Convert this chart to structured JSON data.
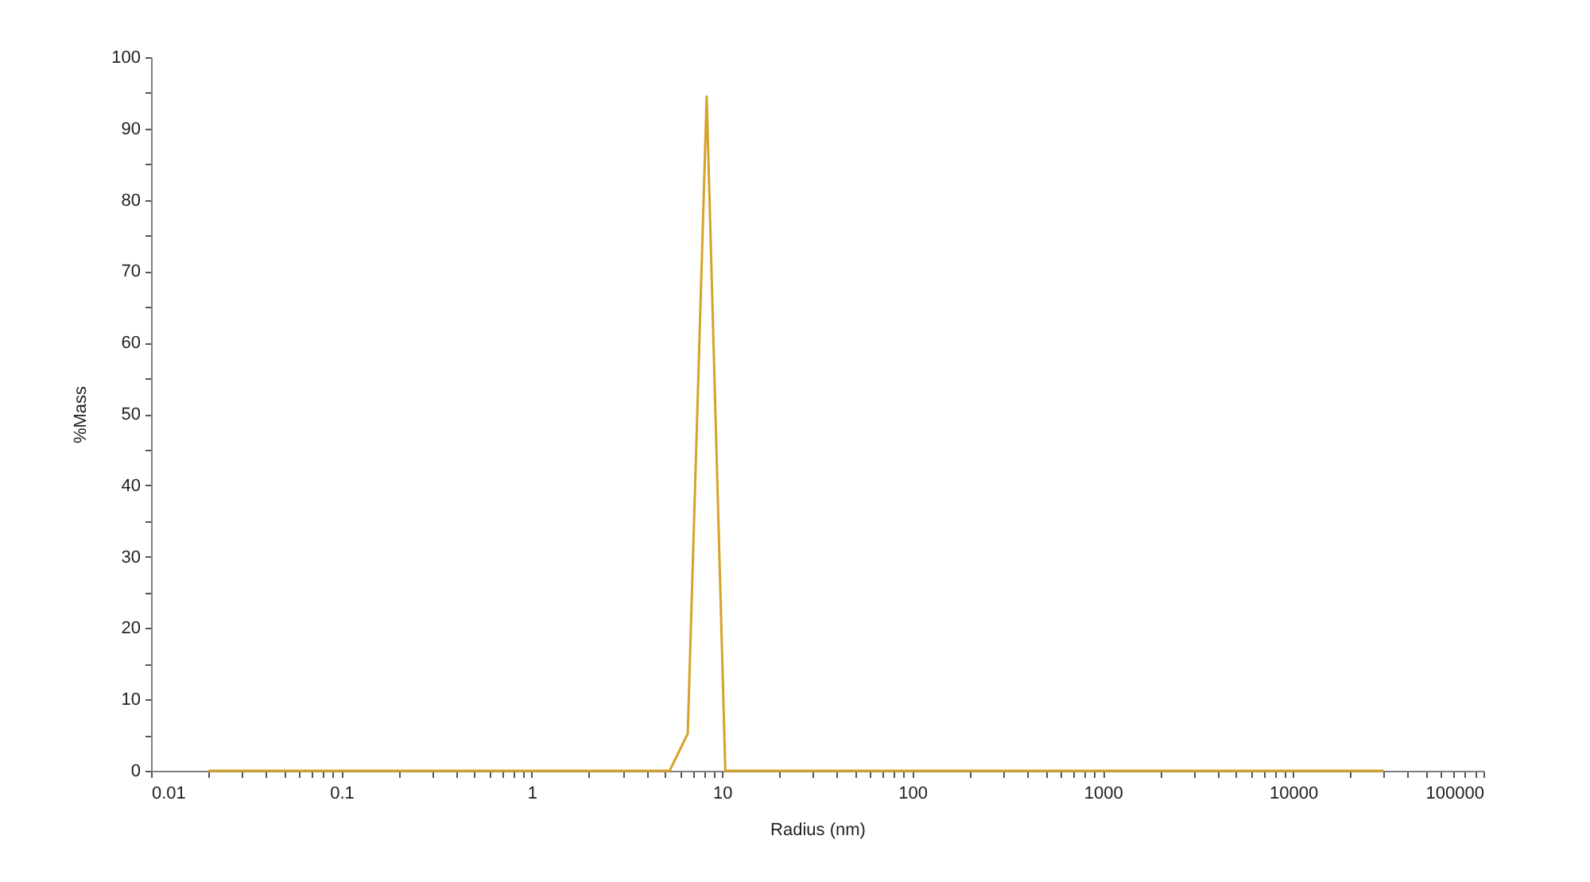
{
  "chart_data": {
    "type": "line",
    "xlabel": "Radius (nm)",
    "ylabel": "%Mass",
    "log": "x",
    "line_style": "solid",
    "x": [
      0.02,
      5.3,
      6.6,
      8.3,
      10.4,
      30000
    ],
    "series": [
      {
        "color": "#d6a22a",
        "values": [
          0,
          0,
          5.2,
          94.5,
          0,
          0
        ]
      }
    ],
    "xlim": [
      0.01,
      100000
    ],
    "ylim": [
      0,
      100
    ],
    "xticks": [
      0.01,
      {
        "value": 0.02,
        "label": null
      },
      {
        "value": 0.03,
        "label": null
      },
      {
        "value": 0.04,
        "label": null
      },
      {
        "value": 0.05,
        "label": null
      },
      {
        "value": 0.06,
        "label": null
      },
      {
        "value": 0.07,
        "label": null
      },
      {
        "value": 0.08,
        "label": null
      },
      {
        "value": 0.09,
        "label": null
      },
      0.1,
      {
        "value": 0.2,
        "label": null
      },
      {
        "value": 0.3,
        "label": null
      },
      {
        "value": 0.4,
        "label": null
      },
      {
        "value": 0.5,
        "label": null
      },
      {
        "value": 0.6,
        "label": null
      },
      {
        "value": 0.7,
        "label": null
      },
      {
        "value": 0.8,
        "label": null
      },
      {
        "value": 0.9,
        "label": null
      },
      1,
      {
        "value": 2,
        "label": null
      },
      {
        "value": 3,
        "label": null
      },
      {
        "value": 4,
        "label": null
      },
      {
        "value": 5,
        "label": null
      },
      {
        "value": 6,
        "label": null
      },
      {
        "value": 7,
        "label": null
      },
      {
        "value": 8,
        "label": null
      },
      {
        "value": 9,
        "label": null
      },
      10,
      {
        "value": 20,
        "label": null
      },
      {
        "value": 30,
        "label": null
      },
      {
        "value": 40,
        "label": null
      },
      {
        "value": 50,
        "label": null
      },
      {
        "value": 60,
        "label": null
      },
      {
        "value": 70,
        "label": null
      },
      {
        "value": 80,
        "label": null
      },
      {
        "value": 90,
        "label": null
      },
      100,
      {
        "value": 200,
        "label": null
      },
      {
        "value": 300,
        "label": null
      },
      {
        "value": 400,
        "label": null
      },
      {
        "value": 500,
        "label": null
      },
      {
        "value": 600,
        "label": null
      },
      {
        "value": 700,
        "label": null
      },
      {
        "value": 800,
        "label": null
      },
      {
        "value": 900,
        "label": null
      },
      1000,
      {
        "value": 2000,
        "label": null
      },
      {
        "value": 3000,
        "label": null
      },
      {
        "value": 4000,
        "label": null
      },
      {
        "value": 5000,
        "label": null
      },
      {
        "value": 6000,
        "label": null
      },
      {
        "value": 7000,
        "label": null
      },
      {
        "value": 8000,
        "label": null
      },
      {
        "value": 9000,
        "label": null
      },
      10000,
      {
        "value": 20000,
        "label": null
      },
      {
        "value": 30000,
        "label": null
      },
      {
        "value": 40000,
        "label": null
      },
      {
        "value": 50000,
        "label": null
      },
      {
        "value": 60000,
        "label": null
      },
      {
        "value": 70000,
        "label": null
      },
      {
        "value": 80000,
        "label": null
      },
      {
        "value": 90000,
        "label": null
      },
      100000
    ],
    "yticks": [
      0,
      {
        "value": 5,
        "label": null
      },
      10,
      {
        "value": 15,
        "label": null
      },
      20,
      {
        "value": 25,
        "label": null
      },
      30,
      {
        "value": 35,
        "label": null
      },
      40,
      {
        "value": 45,
        "label": null
      },
      50,
      {
        "value": 55,
        "label": null
      },
      60,
      {
        "value": 65,
        "label": null
      },
      70,
      {
        "value": 75,
        "label": null
      },
      80,
      {
        "value": 85,
        "label": null
      },
      90,
      {
        "value": 95,
        "label": null
      },
      100
    ]
  }
}
